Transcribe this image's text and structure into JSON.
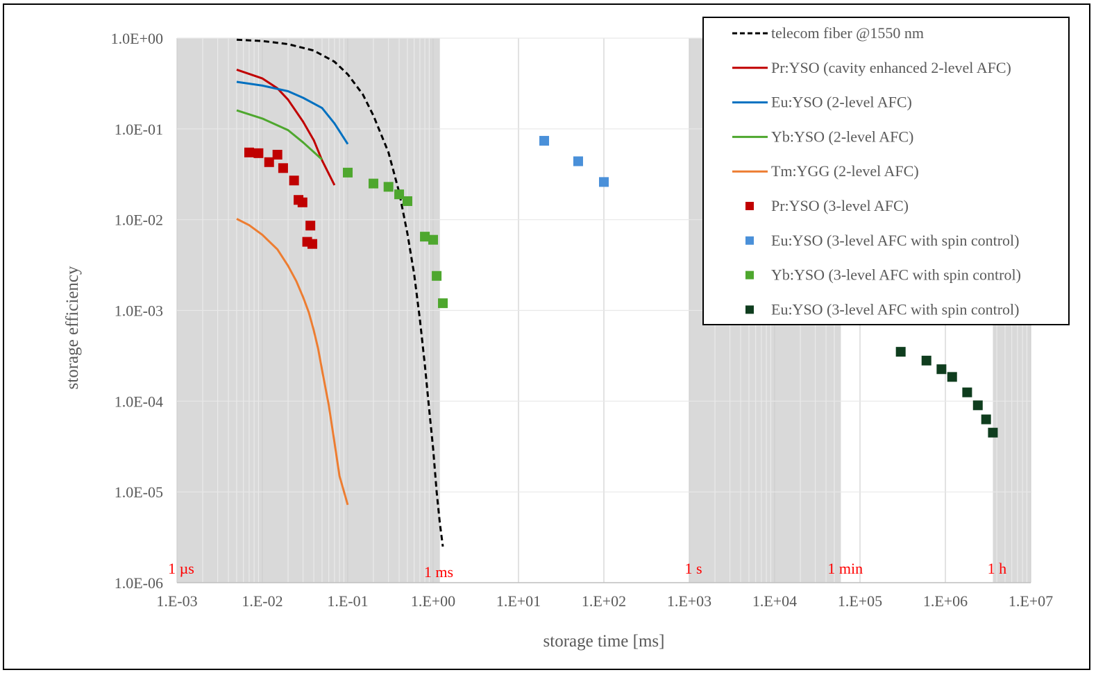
{
  "chart_data": {
    "type": "scatter",
    "xlabel": "storage time [ms]",
    "ylabel": "storage efficiency",
    "x_scale": "log",
    "y_scale": "log",
    "xlim": [
      0.001,
      10000000
    ],
    "ylim": [
      1e-06,
      1
    ],
    "x_tick_labels": [
      "1.E-03",
      "1.E-02",
      "1.E-01",
      "1.E+00",
      "1.E+01",
      "1.E+02",
      "1.E+03",
      "1.E+04",
      "1.E+05",
      "1.E+06",
      "1.E+07"
    ],
    "y_tick_labels": [
      "1.0E+00",
      "1.0E-01",
      "1.0E-02",
      "1.0E-03",
      "1.0E-04",
      "1.0E-05",
      "1.0E-06"
    ],
    "grid": true,
    "legend_position": "top-right",
    "shaded_bands": [
      {
        "from": 0.001,
        "to": 1.2,
        "color": "#d9d9d9"
      },
      {
        "from": 1000,
        "to": 60000,
        "color": "#d9d9d9"
      },
      {
        "from": 3600000,
        "to": 10000000,
        "color": "#d9d9d9"
      }
    ],
    "annotations": [
      {
        "text": "1 µs",
        "x": 0.001
      },
      {
        "text": "1 ms",
        "x": 1.0
      },
      {
        "text": "1 s",
        "x": 1000
      },
      {
        "text": "1 min",
        "x": 60000
      },
      {
        "text": "1 h",
        "x": 3600000
      }
    ],
    "series": [
      {
        "name": "telecom fiber @1550 nm",
        "style": "dashed-line",
        "color": "#000000",
        "points": [
          [
            0.005,
            0.96
          ],
          [
            0.01,
            0.93
          ],
          [
            0.02,
            0.86
          ],
          [
            0.04,
            0.73
          ],
          [
            0.07,
            0.55
          ],
          [
            0.1,
            0.4
          ],
          [
            0.15,
            0.24
          ],
          [
            0.2,
            0.14
          ],
          [
            0.3,
            0.055
          ],
          [
            0.4,
            0.02
          ],
          [
            0.5,
            0.007
          ],
          [
            0.6,
            0.0025
          ],
          [
            0.7,
            0.0008
          ],
          [
            0.8,
            0.00025
          ],
          [
            0.9,
            8e-05
          ],
          [
            1.0,
            3e-05
          ],
          [
            1.1,
            1e-05
          ],
          [
            1.2,
            4.5e-06
          ],
          [
            1.3,
            2.5e-06
          ]
        ]
      },
      {
        "name": "Pr:YSO (cavity enhanced 2-level AFC)",
        "style": "line",
        "color": "#c00000",
        "points": [
          [
            0.005,
            0.45
          ],
          [
            0.01,
            0.36
          ],
          [
            0.015,
            0.28
          ],
          [
            0.02,
            0.21
          ],
          [
            0.03,
            0.12
          ],
          [
            0.04,
            0.075
          ],
          [
            0.05,
            0.045
          ],
          [
            0.07,
            0.024
          ]
        ]
      },
      {
        "name": "Eu:YSO (2-level AFC)",
        "style": "line",
        "color": "#0070c0",
        "points": [
          [
            0.005,
            0.33
          ],
          [
            0.01,
            0.3
          ],
          [
            0.02,
            0.26
          ],
          [
            0.03,
            0.22
          ],
          [
            0.05,
            0.17
          ],
          [
            0.07,
            0.115
          ],
          [
            0.1,
            0.068
          ]
        ]
      },
      {
        "name": "Yb:YSO (2-level AFC)",
        "style": "line",
        "color": "#4ea72e",
        "points": [
          [
            0.005,
            0.16
          ],
          [
            0.01,
            0.13
          ],
          [
            0.02,
            0.097
          ],
          [
            0.03,
            0.071
          ],
          [
            0.05,
            0.046
          ]
        ]
      },
      {
        "name": "Tm:YGG (2-level AFC)",
        "style": "line",
        "color": "#ed7d31",
        "points": [
          [
            0.005,
            0.0102
          ],
          [
            0.007,
            0.0087
          ],
          [
            0.01,
            0.0068
          ],
          [
            0.015,
            0.0047
          ],
          [
            0.02,
            0.0031
          ],
          [
            0.025,
            0.0021
          ],
          [
            0.03,
            0.0014
          ],
          [
            0.035,
            0.00095
          ],
          [
            0.04,
            0.0006
          ],
          [
            0.045,
            0.00038
          ],
          [
            0.05,
            0.00022
          ],
          [
            0.06,
            9e-05
          ],
          [
            0.07,
            3.5e-05
          ],
          [
            0.08,
            1.5e-05
          ],
          [
            0.1,
            7.2e-06
          ]
        ]
      },
      {
        "name": "Pr:YSO (3-level AFC)",
        "style": "marker",
        "color": "#c00000",
        "points": [
          [
            0.007,
            0.055
          ],
          [
            0.009,
            0.054
          ],
          [
            0.012,
            0.043
          ],
          [
            0.015,
            0.052
          ],
          [
            0.0175,
            0.037
          ],
          [
            0.0235,
            0.027
          ],
          [
            0.0265,
            0.0165
          ],
          [
            0.0295,
            0.0155
          ],
          [
            0.0335,
            0.0057
          ],
          [
            0.0365,
            0.0086
          ],
          [
            0.0385,
            0.0054
          ]
        ]
      },
      {
        "name": "Eu:YSO (3-level AFC with spin control)",
        "style": "marker",
        "color": "#4a90d9",
        "points": [
          [
            20,
            0.074
          ],
          [
            50,
            0.044
          ],
          [
            100,
            0.026
          ]
        ]
      },
      {
        "name": "Yb:YSO (3-level AFC with spin control)",
        "style": "marker",
        "color": "#4ea72e",
        "points": [
          [
            0.1,
            0.033
          ],
          [
            0.2,
            0.025
          ],
          [
            0.3,
            0.023
          ],
          [
            0.4,
            0.019
          ],
          [
            0.5,
            0.016
          ],
          [
            0.8,
            0.0065
          ],
          [
            1.0,
            0.006
          ],
          [
            1.1,
            0.0024
          ],
          [
            1.3,
            0.0012
          ]
        ]
      },
      {
        "name": "Eu:YSO (3-level AFC with spin control)",
        "style": "marker",
        "color": "#0f3d1e",
        "points": [
          [
            300000,
            0.00035
          ],
          [
            600000,
            0.00028
          ],
          [
            900000,
            0.000225
          ],
          [
            1200000,
            0.000185
          ],
          [
            1800000,
            0.000125
          ],
          [
            2400000,
            9e-05
          ],
          [
            3000000,
            6.3e-05
          ],
          [
            3600000,
            4.5e-05
          ]
        ]
      }
    ]
  }
}
